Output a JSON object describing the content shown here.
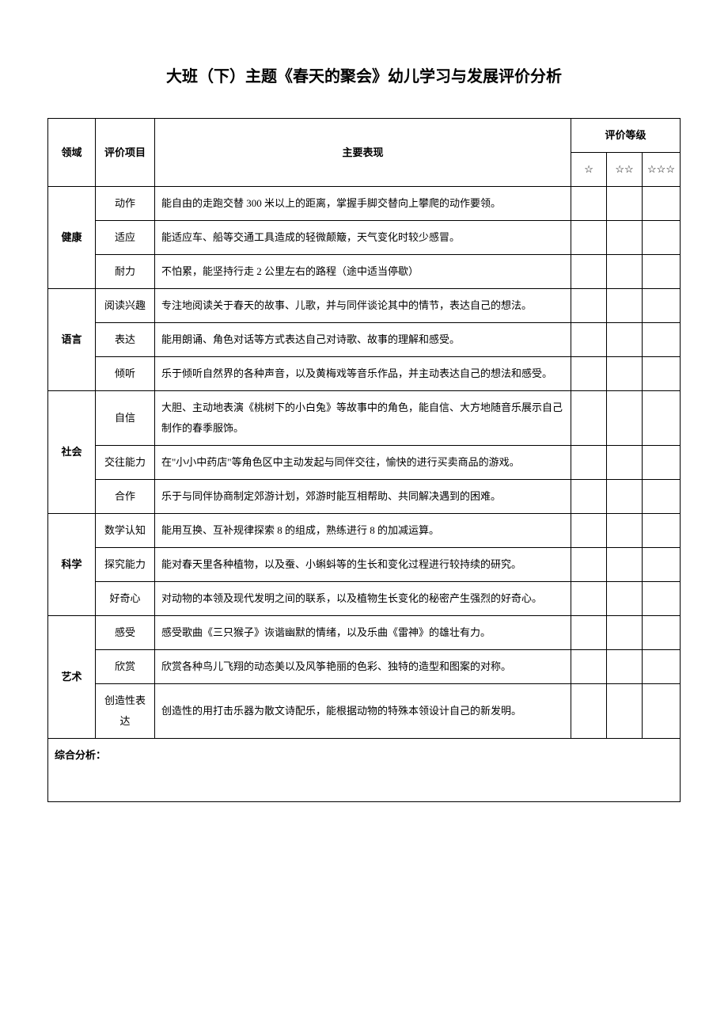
{
  "title": "大班（下）主题《春天的聚会》幼儿学习与发展评价分析",
  "headers": {
    "domain": "领域",
    "item": "评价项目",
    "performance": "主要表现",
    "rating": "评价等级",
    "star1": "☆",
    "star2": "☆☆",
    "star3": "☆☆☆"
  },
  "domains": [
    {
      "name": "健康",
      "rows": [
        {
          "item": "动作",
          "desc": "能自由的走跑交替 300 米以上的距离，掌握手脚交替向上攀爬的动作要领。"
        },
        {
          "item": "适应",
          "desc": "能适应车、船等交通工具造成的轻微颠簸，天气变化时较少感冒。"
        },
        {
          "item": "耐力",
          "desc": "不怕累，能坚持行走 2 公里左右的路程（途中适当停歇）"
        }
      ]
    },
    {
      "name": "语言",
      "rows": [
        {
          "item": "阅读兴趣",
          "desc": "专注地阅读关于春天的故事、儿歌，并与同伴谈论其中的情节，表达自己的想法。"
        },
        {
          "item": "表达",
          "desc": "能用朗诵、角色对话等方式表达自己对诗歌、故事的理解和感受。"
        },
        {
          "item": "倾听",
          "desc": "乐于倾听自然界的各种声音，以及黄梅戏等音乐作品，并主动表达自己的想法和感受。"
        }
      ]
    },
    {
      "name": "社会",
      "rows": [
        {
          "item": "自信",
          "desc": "大胆、主动地表演《桃树下的小白兔》等故事中的角色，能自信、大方地随音乐展示自己制作的春季服饰。"
        },
        {
          "item": "交往能力",
          "desc": "在\"小小中药店\"等角色区中主动发起与同伴交往，愉快的进行买卖商品的游戏。"
        },
        {
          "item": "合作",
          "desc": "乐于与同伴协商制定郊游计划，郊游时能互相帮助、共同解决遇到的困难。"
        }
      ]
    },
    {
      "name": "科学",
      "rows": [
        {
          "item": "数学认知",
          "desc": "能用互换、互补规律探索 8 的组成，熟练进行 8 的加减运算。"
        },
        {
          "item": "探究能力",
          "desc": "能对春天里各种植物，以及蚕、小蝌蚪等的生长和变化过程进行较持续的研究。"
        },
        {
          "item": "好奇心",
          "desc": "对动物的本领及现代发明之间的联系，以及植物生长变化的秘密产生强烈的好奇心。"
        }
      ]
    },
    {
      "name": "艺术",
      "rows": [
        {
          "item": "感受",
          "desc": "感受歌曲《三只猴子》诙谐幽默的情绪，以及乐曲《雷神》的雄壮有力。"
        },
        {
          "item": "欣赏",
          "desc": "欣赏各种鸟儿飞翔的动态美以及风筝艳丽的色彩、独特的造型和图案的对称。"
        },
        {
          "item": "创造性表达",
          "desc": "创造性的用打击乐器为散文诗配乐，能根据动物的特殊本领设计自己的新发明。"
        }
      ]
    }
  ],
  "summary_label": "综合分析：",
  "styles": {
    "background_color": "#ffffff",
    "border_color": "#000000",
    "title_fontsize": 20,
    "body_fontsize": 13,
    "line_height": 2
  }
}
